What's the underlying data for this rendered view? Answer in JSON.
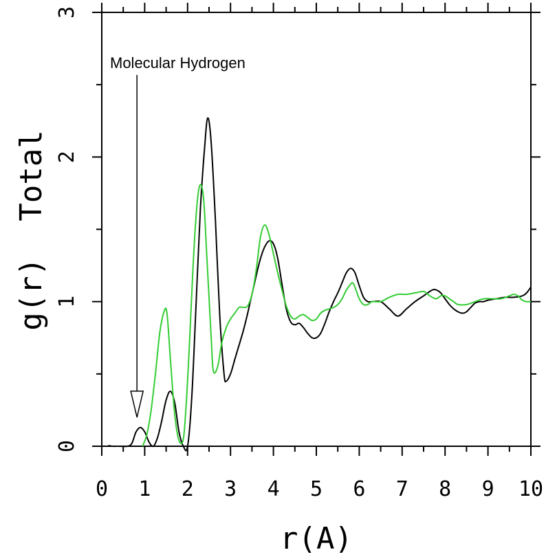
{
  "chart_data": {
    "type": "line",
    "xlabel": "r(A)",
    "ylabel": "g(r)  Total",
    "xlim": [
      0,
      10
    ],
    "ylim": [
      0,
      3
    ],
    "x_ticks": [
      "0",
      "1",
      "2",
      "3",
      "4",
      "5",
      "6",
      "7",
      "8",
      "9",
      "10"
    ],
    "y_ticks": [
      "0",
      "1",
      "2",
      "3"
    ],
    "grid": false,
    "annotation": {
      "text": "Molecular Hydrogen",
      "x": 0.82,
      "y": 0.2
    },
    "series": [
      {
        "color": "#000000",
        "x": [
          0.15,
          0.25,
          0.4,
          0.6,
          0.7,
          0.8,
          0.9,
          1.0,
          1.1,
          1.2,
          1.3,
          1.4,
          1.5,
          1.6,
          1.7,
          1.8,
          1.9,
          2.0,
          2.1,
          2.2,
          2.3,
          2.4,
          2.47,
          2.55,
          2.65,
          2.75,
          2.85,
          2.9,
          3.0,
          3.1,
          3.2,
          3.3,
          3.4,
          3.5,
          3.6,
          3.7,
          3.8,
          3.9,
          4.0,
          4.1,
          4.2,
          4.3,
          4.4,
          4.5,
          4.6,
          4.7,
          4.8,
          4.9,
          5.0,
          5.1,
          5.2,
          5.3,
          5.4,
          5.5,
          5.6,
          5.7,
          5.8,
          5.9,
          6.0,
          6.1,
          6.2,
          6.3,
          6.5,
          6.7,
          6.9,
          7.1,
          7.3,
          7.5,
          7.7,
          7.8,
          7.9,
          8.0,
          8.1,
          8.2,
          8.3,
          8.4,
          8.5,
          8.6,
          8.7,
          8.8,
          8.9,
          9.0,
          9.2,
          9.4,
          9.6,
          9.8,
          9.9,
          10.0
        ],
        "y": [
          0.005,
          0.0,
          0.0,
          0.0,
          0.02,
          0.1,
          0.13,
          0.1,
          0.03,
          0.0,
          0.06,
          0.18,
          0.32,
          0.38,
          0.3,
          0.1,
          0.0,
          0.0,
          0.35,
          1.0,
          1.65,
          2.08,
          2.27,
          2.1,
          1.55,
          0.9,
          0.5,
          0.45,
          0.5,
          0.6,
          0.7,
          0.8,
          0.92,
          1.05,
          1.18,
          1.3,
          1.38,
          1.42,
          1.4,
          1.3,
          1.12,
          0.95,
          0.86,
          0.84,
          0.85,
          0.82,
          0.78,
          0.75,
          0.75,
          0.78,
          0.85,
          0.93,
          1.0,
          1.06,
          1.13,
          1.2,
          1.23,
          1.2,
          1.11,
          1.03,
          1.0,
          1.0,
          1.0,
          0.95,
          0.9,
          0.95,
          1.0,
          1.04,
          1.08,
          1.08,
          1.06,
          1.02,
          0.98,
          0.95,
          0.93,
          0.92,
          0.93,
          0.96,
          0.99,
          1.0,
          1.0,
          1.01,
          1.02,
          1.03,
          1.03,
          1.04,
          1.06,
          1.1
        ]
      },
      {
        "color": "#33cc33",
        "x": [
          0.95,
          1.05,
          1.15,
          1.25,
          1.35,
          1.45,
          1.52,
          1.6,
          1.7,
          1.8,
          1.9,
          1.97,
          2.05,
          2.12,
          2.2,
          2.28,
          2.37,
          2.45,
          2.55,
          2.6,
          2.7,
          2.8,
          2.9,
          3.0,
          3.1,
          3.2,
          3.3,
          3.4,
          3.5,
          3.6,
          3.7,
          3.8,
          3.9,
          4.0,
          4.1,
          4.2,
          4.3,
          4.4,
          4.5,
          4.6,
          4.7,
          4.8,
          4.9,
          5.0,
          5.1,
          5.2,
          5.3,
          5.4,
          5.5,
          5.6,
          5.7,
          5.8,
          5.85,
          5.9,
          6.0,
          6.1,
          6.2,
          6.3,
          6.5,
          6.7,
          6.9,
          7.1,
          7.3,
          7.5,
          7.6,
          7.7,
          7.8,
          7.9,
          8.0,
          8.1,
          8.2,
          8.3,
          8.5,
          8.7,
          8.9,
          9.1,
          9.3,
          9.5,
          9.6,
          9.7,
          9.8,
          9.9,
          10.0
        ],
        "y": [
          0.0,
          0.08,
          0.25,
          0.5,
          0.78,
          0.93,
          0.92,
          0.6,
          0.22,
          0.04,
          0.05,
          0.3,
          0.75,
          1.2,
          1.6,
          1.8,
          1.72,
          1.3,
          0.75,
          0.52,
          0.55,
          0.72,
          0.82,
          0.88,
          0.92,
          0.96,
          0.96,
          0.97,
          1.05,
          1.22,
          1.45,
          1.53,
          1.46,
          1.33,
          1.2,
          1.08,
          0.97,
          0.9,
          0.88,
          0.9,
          0.91,
          0.89,
          0.87,
          0.88,
          0.92,
          0.94,
          0.95,
          0.96,
          0.98,
          1.02,
          1.08,
          1.12,
          1.13,
          1.1,
          1.02,
          0.98,
          0.98,
          1.0,
          1.0,
          1.03,
          1.05,
          1.05,
          1.06,
          1.07,
          1.05,
          1.03,
          1.02,
          1.04,
          1.04,
          1.02,
          1.0,
          0.98,
          0.98,
          1.0,
          1.02,
          1.02,
          1.02,
          1.04,
          1.05,
          1.04,
          1.01,
          1.0,
          1.0
        ]
      }
    ]
  }
}
